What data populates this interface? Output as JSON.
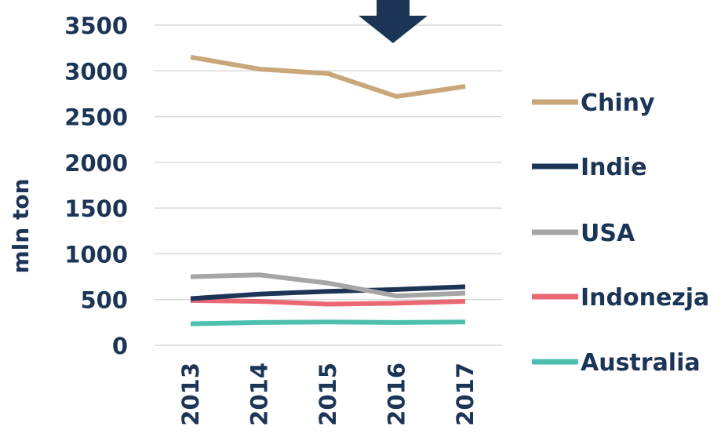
{
  "chart_data": {
    "type": "line",
    "x": [
      "2013",
      "2014",
      "2015",
      "2016",
      "2017"
    ],
    "ylabel": "mln ton",
    "ylim": [
      0,
      3500
    ],
    "yticks": [
      "0",
      "500",
      "1000",
      "1500",
      "2000",
      "2500",
      "3000",
      "3500"
    ],
    "grid": true,
    "legend_position": "right",
    "annotation": "down-arrow-above-2016",
    "series": [
      {
        "name": "Chiny",
        "color": "#c9a77a",
        "values": [
          3150,
          3020,
          2970,
          2720,
          2830
        ]
      },
      {
        "name": "Indie",
        "color": "#1c3557",
        "values": [
          510,
          560,
          590,
          610,
          640
        ]
      },
      {
        "name": "USA",
        "color": "#a6a6a6",
        "values": [
          750,
          770,
          680,
          540,
          570
        ]
      },
      {
        "name": "Indonezja",
        "color": "#e96874",
        "values": [
          490,
          480,
          450,
          460,
          480
        ]
      },
      {
        "name": "Australia",
        "color": "#4dbfb0",
        "values": [
          235,
          250,
          255,
          250,
          255
        ]
      }
    ]
  }
}
